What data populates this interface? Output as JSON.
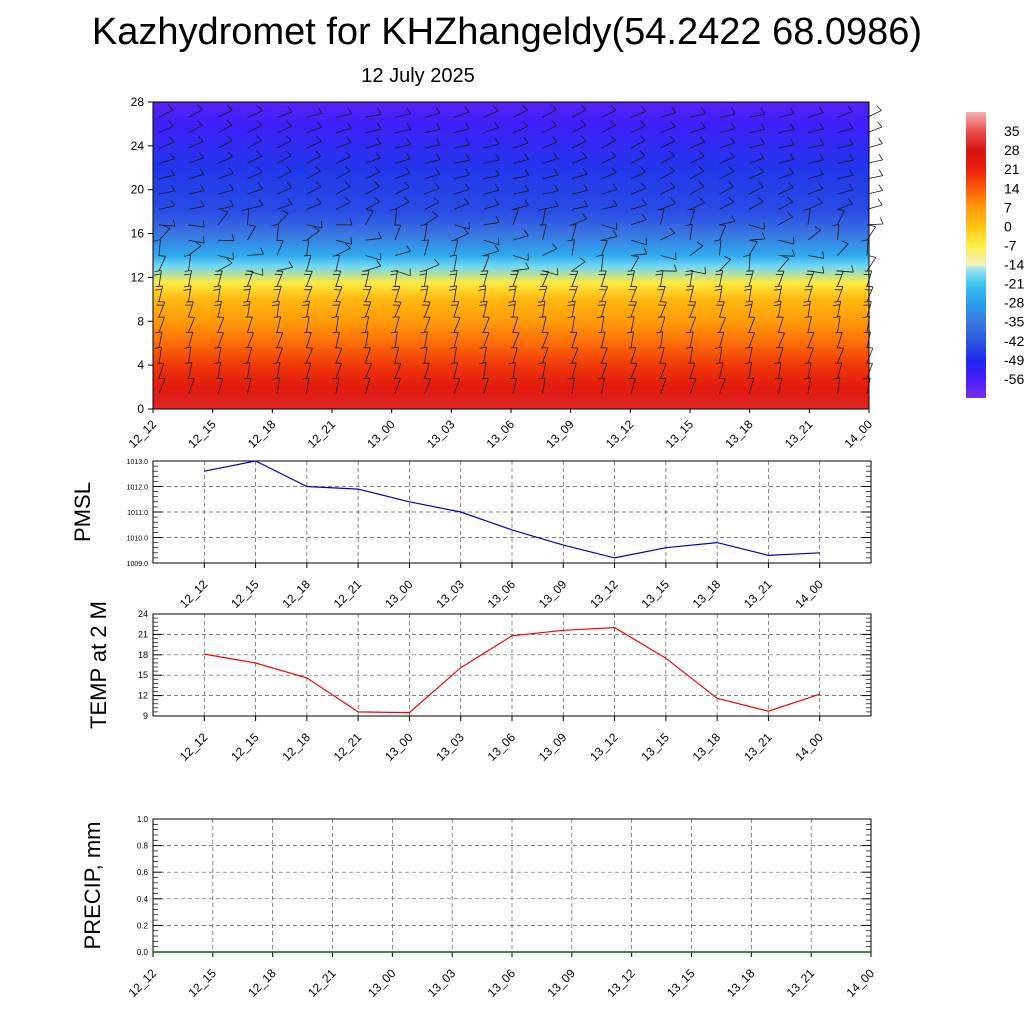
{
  "title": "Kazhydromet for KHZhangeldy(54.2422 68.0986)",
  "subtitle": "12 July 2025",
  "time_labels": [
    "12_12",
    "12_15",
    "12_18",
    "12_21",
    "13_00",
    "13_03",
    "13_06",
    "13_09",
    "13_12",
    "13_15",
    "13_18",
    "13_21",
    "14_00"
  ],
  "colors": {
    "pmsl_line": "#0000cc",
    "temp_line": "#ff0000",
    "precip_line": "#006400",
    "grid": "#555555"
  },
  "chart_data": [
    {
      "type": "heatmap",
      "ylim": [
        0,
        28
      ],
      "y_ticks": [
        "0",
        "4",
        "8",
        "12",
        "16",
        "20",
        "24",
        "28"
      ],
      "x": [
        "12_12",
        "12_15",
        "12_18",
        "12_21",
        "13_00",
        "13_03",
        "13_06",
        "13_09",
        "13_12",
        "13_15",
        "13_18",
        "13_21",
        "14_00"
      ],
      "colorbar_labels": [
        "35",
        "28",
        "21",
        "14",
        "7",
        "0",
        "-7",
        "-14",
        "-21",
        "-28",
        "-35",
        "-42",
        "-49",
        "-56"
      ],
      "colorbar_range": [
        -63,
        42
      ],
      "temperature_profile": [
        [
          0,
          30
        ],
        [
          2,
          24
        ],
        [
          4,
          18
        ],
        [
          6,
          12
        ],
        [
          8,
          7
        ],
        [
          10,
          2
        ],
        [
          11.5,
          -6
        ],
        [
          13,
          -18
        ],
        [
          14,
          -26
        ],
        [
          16,
          -36
        ],
        [
          18,
          -44
        ],
        [
          22,
          -47
        ],
        [
          26,
          -55
        ],
        [
          28,
          -58
        ]
      ],
      "wind_barbs": true
    },
    {
      "type": "line",
      "ylabel": "PMSL",
      "ylim": [
        1009.0,
        1013.0
      ],
      "y_ticks": [
        "1009.0",
        "1010.0",
        "1011.0",
        "1012.0",
        "1013.0"
      ],
      "x": [
        "12_12",
        "12_15",
        "12_18",
        "12_21",
        "13_00",
        "13_03",
        "13_06",
        "13_09",
        "13_12",
        "13_15",
        "13_18",
        "13_21",
        "14_00"
      ],
      "series": [
        {
          "values": [
            1012.6,
            1013.0,
            1012.0,
            1011.9,
            1011.4,
            1011.0,
            1010.3,
            1009.7,
            1009.2,
            1009.6,
            1009.8,
            1009.3,
            1009.4
          ]
        }
      ]
    },
    {
      "type": "line",
      "ylabel": "TEMP at 2 M",
      "ylim": [
        9,
        24
      ],
      "y_ticks": [
        "9",
        "12",
        "15",
        "18",
        "21",
        "24"
      ],
      "x": [
        "12_12",
        "12_15",
        "12_18",
        "12_21",
        "13_00",
        "13_03",
        "13_06",
        "13_09",
        "13_12",
        "13_15",
        "13_18",
        "13_21",
        "14_00"
      ],
      "series": [
        {
          "values": [
            18.1,
            16.8,
            14.6,
            9.6,
            9.5,
            16.1,
            20.8,
            21.6,
            22.0,
            17.5,
            11.6,
            9.7,
            12.2
          ]
        }
      ]
    },
    {
      "type": "line",
      "ylabel": "PRECIP, mm",
      "ylim": [
        0.0,
        1.0
      ],
      "y_ticks": [
        "0.0",
        "0.2",
        "0.4",
        "0.6",
        "0.8",
        "1.0"
      ],
      "x": [
        "12_12",
        "12_15",
        "12_18",
        "12_21",
        "13_00",
        "13_03",
        "13_06",
        "13_09",
        "13_12",
        "13_15",
        "13_18",
        "13_21",
        "14_00"
      ],
      "series": [
        {
          "values": [
            0,
            0,
            0,
            0,
            0,
            0,
            0,
            0,
            0,
            0,
            0,
            0,
            0
          ]
        }
      ]
    }
  ]
}
